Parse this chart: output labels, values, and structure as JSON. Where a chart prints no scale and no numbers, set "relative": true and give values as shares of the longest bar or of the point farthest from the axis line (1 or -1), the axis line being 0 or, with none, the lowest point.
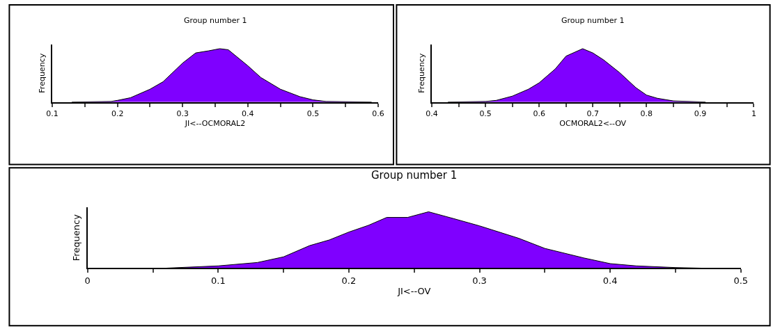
{
  "chart_data": [
    {
      "type": "area",
      "title": "Group number 1",
      "xlabel": "JI<--OCMORAL2",
      "ylabel": "Frequency",
      "relative": true,
      "color": "#7f00ff",
      "x": [
        0.13,
        0.19,
        0.2,
        0.22,
        0.25,
        0.27,
        0.3,
        0.32,
        0.34,
        0.357,
        0.37,
        0.4,
        0.42,
        0.45,
        0.48,
        0.5,
        0.52,
        0.59
      ],
      "values": [
        0,
        0.01,
        0.03,
        0.08,
        0.24,
        0.38,
        0.73,
        0.92,
        0.96,
        1,
        0.98,
        0.68,
        0.46,
        0.24,
        0.1,
        0.04,
        0.01,
        0
      ],
      "xlim": [
        0.1,
        0.6
      ],
      "xticks": [
        0.1,
        {
          "value": 0.15,
          "label": null
        },
        0.2,
        {
          "value": 0.25,
          "label": null
        },
        0.3,
        {
          "value": 0.35,
          "label": null
        },
        0.4,
        {
          "value": 0.45,
          "label": null
        },
        0.5,
        {
          "value": 0.55,
          "label": null
        },
        0.6
      ]
    },
    {
      "type": "area",
      "title": "Group number 1",
      "xlabel": "OCMORAL2<--OV",
      "ylabel": "Frequency",
      "relative": true,
      "color": "#7f00ff",
      "x": [
        0.43,
        0.5,
        0.52,
        0.55,
        0.58,
        0.6,
        0.63,
        0.65,
        0.681,
        0.7,
        0.72,
        0.75,
        0.78,
        0.8,
        0.82,
        0.85,
        0.91
      ],
      "values": [
        0,
        0.01,
        0.03,
        0.11,
        0.24,
        0.36,
        0.62,
        0.86,
        1,
        0.92,
        0.79,
        0.55,
        0.27,
        0.13,
        0.07,
        0.02,
        0
      ],
      "xlim": [
        0.4,
        1
      ],
      "xticks": [
        0.4,
        {
          "value": 0.45,
          "label": null
        },
        0.5,
        {
          "value": 0.55,
          "label": null
        },
        0.6,
        {
          "value": 0.65,
          "label": null
        },
        0.7,
        {
          "value": 0.75,
          "label": null
        },
        0.8,
        {
          "value": 0.85,
          "label": null
        },
        0.9,
        {
          "value": 0.95,
          "label": null
        },
        1
      ]
    },
    {
      "type": "area",
      "title": "Group number 1",
      "xlabel": "JI<--OV",
      "ylabel": "Frequency",
      "relative": true,
      "color": "#7f00ff",
      "x": [
        0.06,
        0.1,
        0.13,
        0.15,
        0.17,
        0.185,
        0.2,
        0.215,
        0.229,
        0.245,
        0.261,
        0.28,
        0.3,
        0.33,
        0.35,
        0.38,
        0.4,
        0.42,
        0.45,
        0.47
      ],
      "values": [
        0,
        0.04,
        0.1,
        0.2,
        0.4,
        0.5,
        0.64,
        0.76,
        0.9,
        0.9,
        1,
        0.88,
        0.75,
        0.53,
        0.35,
        0.18,
        0.08,
        0.04,
        0.01,
        0
      ],
      "xlim": [
        0,
        0.5
      ],
      "xticks": [
        0,
        {
          "value": 0.05,
          "label": null
        },
        0.1,
        {
          "value": 0.15,
          "label": null
        },
        0.2,
        {
          "value": 0.25,
          "label": null
        },
        0.3,
        {
          "value": 0.35,
          "label": null
        },
        0.4,
        {
          "value": 0.45,
          "label": null
        },
        0.5
      ]
    }
  ]
}
